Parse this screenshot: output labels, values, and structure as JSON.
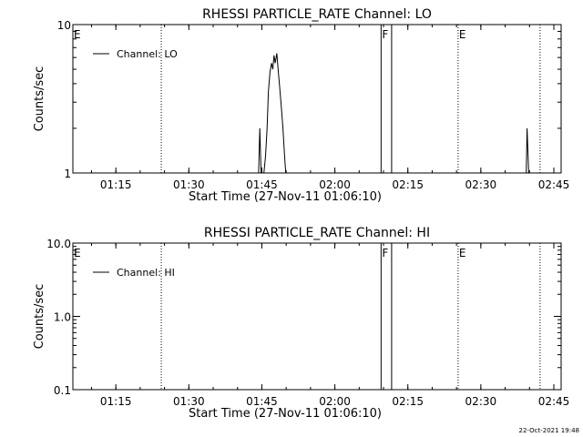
{
  "footer": {
    "timestamp": "22-Oct-2021 19:48"
  },
  "chart_data": [
    {
      "type": "line",
      "title": "RHESSI PARTICLE_RATE Channel: LO",
      "xlabel": "Start Time (27-Nov-11 01:06:10)",
      "ylabel": "Counts/sec",
      "y_scale": "log",
      "ylim": [
        1,
        10
      ],
      "y_ticks": [
        1,
        10
      ],
      "y_tick_labels": [
        "1",
        "10"
      ],
      "xlim": [
        "01:06:10",
        "02:46:30"
      ],
      "x_ticks": [
        "01:15",
        "01:30",
        "01:45",
        "02:00",
        "02:15",
        "02:30",
        "02:45"
      ],
      "legend": {
        "position": "top-left",
        "entries": [
          "Channel: LO"
        ]
      },
      "grid": false,
      "markers": [
        {
          "time": "01:06:10",
          "label": "E",
          "style": "dotted"
        },
        {
          "time": "01:24:20",
          "label": "",
          "style": "dotted"
        },
        {
          "time": "02:09:30",
          "label": "F",
          "style": "solid"
        },
        {
          "time": "02:11:40",
          "label": "",
          "style": "solid"
        },
        {
          "time": "02:25:20",
          "label": "E",
          "style": "dotted"
        },
        {
          "time": "02:42:10",
          "label": "",
          "style": "dotted"
        }
      ],
      "series": [
        {
          "segments": [
            {
              "x": [
                "01:44:20",
                "01:44:35",
                "01:44:50",
                "01:45:10",
                "01:45:25",
                "01:45:45",
                "01:46:05",
                "01:46:20",
                "01:46:40",
                "01:47:00",
                "01:47:15",
                "01:47:30",
                "01:47:45",
                "01:48:05",
                "01:48:20",
                "01:48:40",
                "01:49:00",
                "01:49:20",
                "01:49:40",
                "01:49:55"
              ],
              "values": [
                1,
                2,
                1,
                1,
                1,
                1.3,
                2.0,
                3.5,
                4.8,
                5.5,
                5.0,
                6.2,
                5.5,
                6.4,
                5.0,
                3.8,
                2.8,
                2.0,
                1.3,
                1
              ]
            },
            {
              "x": [
                "02:39:20",
                "02:39:30",
                "02:39:50"
              ],
              "values": [
                1,
                2,
                1
              ]
            }
          ]
        }
      ]
    },
    {
      "type": "line",
      "title": "RHESSI PARTICLE_RATE Channel: HI",
      "xlabel": "Start Time (27-Nov-11 01:06:10)",
      "ylabel": "Counts/sec",
      "y_scale": "log",
      "ylim": [
        0.1,
        10
      ],
      "y_ticks": [
        0.1,
        1,
        10
      ],
      "y_tick_labels": [
        "0.1",
        "1.0",
        "10.0"
      ],
      "xlim": [
        "01:06:10",
        "02:46:30"
      ],
      "x_ticks": [
        "01:15",
        "01:30",
        "01:45",
        "02:00",
        "02:15",
        "02:30",
        "02:45"
      ],
      "legend": {
        "position": "top-left",
        "entries": [
          "Channel: HI"
        ]
      },
      "grid": false,
      "markers": [
        {
          "time": "01:06:10",
          "label": "E",
          "style": "dotted"
        },
        {
          "time": "01:24:20",
          "label": "",
          "style": "dotted"
        },
        {
          "time": "02:09:30",
          "label": "F",
          "style": "solid"
        },
        {
          "time": "02:11:40",
          "label": "",
          "style": "solid"
        },
        {
          "time": "02:25:20",
          "label": "E",
          "style": "dotted"
        },
        {
          "time": "02:42:10",
          "label": "",
          "style": "dotted"
        }
      ],
      "series": [
        {
          "segments": []
        }
      ]
    }
  ]
}
